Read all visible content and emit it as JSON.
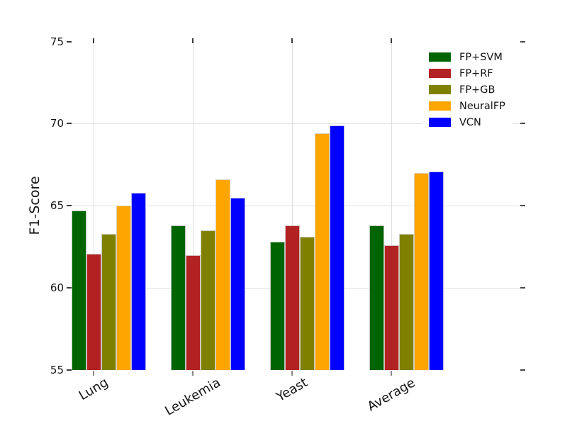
{
  "chart_data": {
    "type": "bar",
    "title": "",
    "xlabel": "",
    "ylabel": "F1-Score",
    "categories": [
      "Lung",
      "Leukemia",
      "Yeast",
      "Average"
    ],
    "series": [
      {
        "name": "FP+SVM",
        "color": "#006400",
        "values": [
          64.7,
          63.8,
          62.8,
          63.8
        ]
      },
      {
        "name": "FP+RF",
        "color": "#B22222",
        "values": [
          62.1,
          62.0,
          63.8,
          62.6
        ]
      },
      {
        "name": "FP+GB",
        "color": "#808000",
        "values": [
          63.3,
          63.5,
          63.1,
          63.3
        ]
      },
      {
        "name": "NeuralFP",
        "color": "#FFA500",
        "values": [
          65.0,
          66.6,
          69.4,
          67.0
        ]
      },
      {
        "name": "VCN",
        "color": "#0000FF",
        "values": [
          65.8,
          65.5,
          69.9,
          67.1
        ]
      }
    ],
    "ylim": [
      55,
      75.2
    ],
    "yticks": [
      55,
      60,
      65,
      70,
      75
    ],
    "grid_yticks": [
      60,
      65,
      70
    ],
    "grid": true,
    "legend_position": "upper-right",
    "xtick_label_rotation_deg": 30
  }
}
